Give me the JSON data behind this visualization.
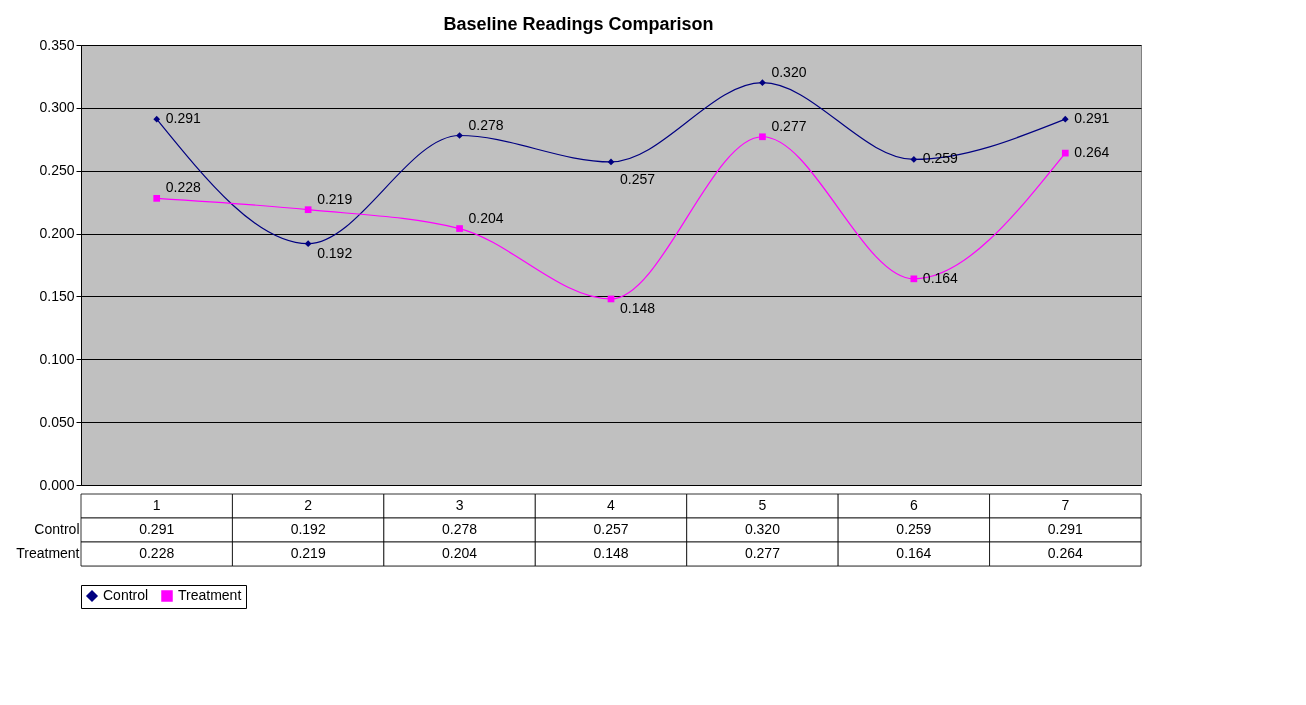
{
  "chart_data": {
    "type": "line",
    "title": "Baseline Readings Comparison",
    "categories": [
      "1",
      "2",
      "3",
      "4",
      "5",
      "6",
      "7"
    ],
    "series": [
      {
        "name": "Control",
        "color": "#000080",
        "marker": "diamond",
        "values": [
          0.291,
          0.192,
          0.278,
          0.257,
          0.32,
          0.259,
          0.291
        ],
        "value_labels": [
          "0.291",
          "0.192",
          "0.278",
          "0.257",
          "0.320",
          "0.259",
          "0.291"
        ]
      },
      {
        "name": "Treatment",
        "color": "#ff00ff",
        "marker": "square",
        "values": [
          0.228,
          0.219,
          0.204,
          0.148,
          0.277,
          0.164,
          0.264
        ],
        "value_labels": [
          "0.228",
          "0.219",
          "0.204",
          "0.148",
          "0.277",
          "0.164",
          "0.264"
        ]
      }
    ],
    "ylim": [
      0,
      0.35
    ],
    "yticks": [
      {
        "value": 0,
        "label": "0.000"
      },
      {
        "value": 0.05,
        "label": "0.050"
      },
      {
        "value": 0.1,
        "label": "0.100"
      },
      {
        "value": 0.15,
        "label": "0.150"
      },
      {
        "value": 0.2,
        "label": "0.200"
      },
      {
        "value": 0.25,
        "label": "0.250"
      },
      {
        "value": 0.3,
        "label": "0.300"
      },
      {
        "value": 0.35,
        "label": "0.350"
      }
    ],
    "grid": "y",
    "legend": "bottom",
    "line_style": "solid"
  }
}
